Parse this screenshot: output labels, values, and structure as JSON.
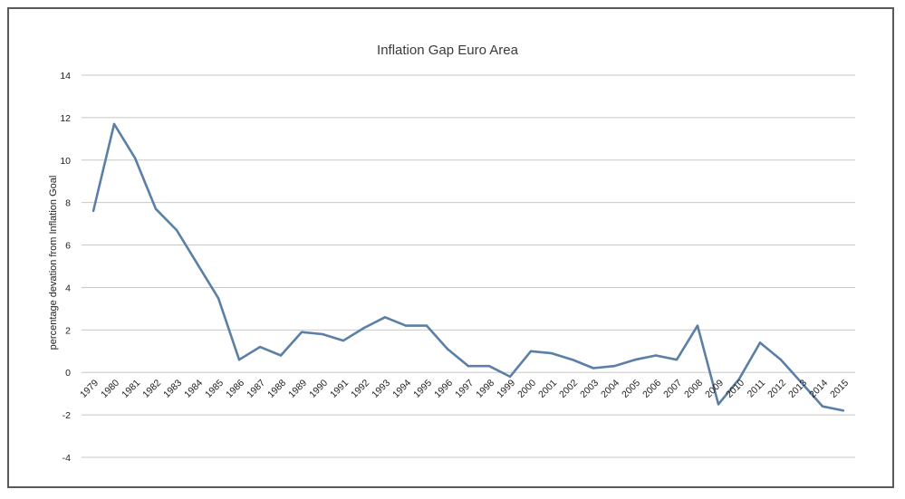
{
  "chart_data": {
    "type": "line",
    "title": "Inflation Gap Euro Area",
    "ylabel": "percentage devation from Inflation Goal",
    "xlabel": "",
    "ylim": [
      -4,
      14
    ],
    "yticks": [
      "14",
      "12",
      "10",
      "8",
      "6",
      "4",
      "2",
      "0",
      "-2",
      "-4"
    ],
    "grid": true,
    "legend": "none",
    "line_color": "#5b7fa6",
    "categories": [
      "1979",
      "1980",
      "1981",
      "1982",
      "1983",
      "1984",
      "1985",
      "1986",
      "1987",
      "1988",
      "1989",
      "1990",
      "1991",
      "1992",
      "1993",
      "1994",
      "1995",
      "1996",
      "1997",
      "1998",
      "1999",
      "2000",
      "2001",
      "2002",
      "2003",
      "2004",
      "2005",
      "2006",
      "2007",
      "2008",
      "2009",
      "2010",
      "2011",
      "2012",
      "2013",
      "2014",
      "2015"
    ],
    "series": [
      {
        "values": [
          7.6,
          11.7,
          10.1,
          7.7,
          6.7,
          5.1,
          3.5,
          0.6,
          1.2,
          0.8,
          1.9,
          1.8,
          1.5,
          2.1,
          2.6,
          2.2,
          2.2,
          1.1,
          0.3,
          0.3,
          -0.2,
          1.0,
          0.9,
          0.6,
          0.2,
          0.3,
          0.6,
          0.8,
          0.6,
          2.2,
          -1.5,
          -0.3,
          1.4,
          0.6,
          -0.5,
          -1.6,
          -1.8
        ]
      }
    ]
  }
}
